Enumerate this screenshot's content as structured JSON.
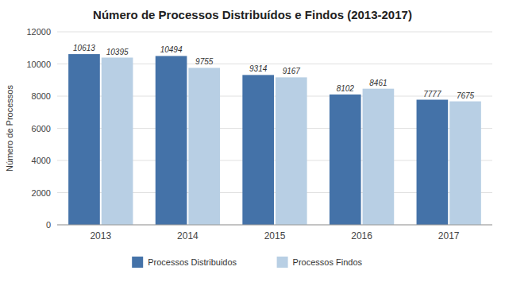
{
  "chart_data": {
    "type": "bar",
    "title": "Número de Processos Distribuídos e Findos (2013-2017)",
    "y_label": "Número de Processos",
    "categories": [
      "2013",
      "2014",
      "2015",
      "2016",
      "2017"
    ],
    "series": [
      {
        "name": "Processos Distribuidos",
        "color": "#4472a8",
        "values": [
          10613,
          10494,
          9314,
          8102,
          7777
        ]
      },
      {
        "name": "Processos Findos",
        "color": "#b8cfe4",
        "values": [
          10395,
          9755,
          9167,
          8461,
          7675
        ]
      }
    ],
    "ylim": [
      0,
      12000
    ],
    "yticks": [
      0,
      2000,
      4000,
      6000,
      8000,
      10000,
      12000
    ],
    "grid": true,
    "legend": "bottom",
    "data_labels": true
  }
}
